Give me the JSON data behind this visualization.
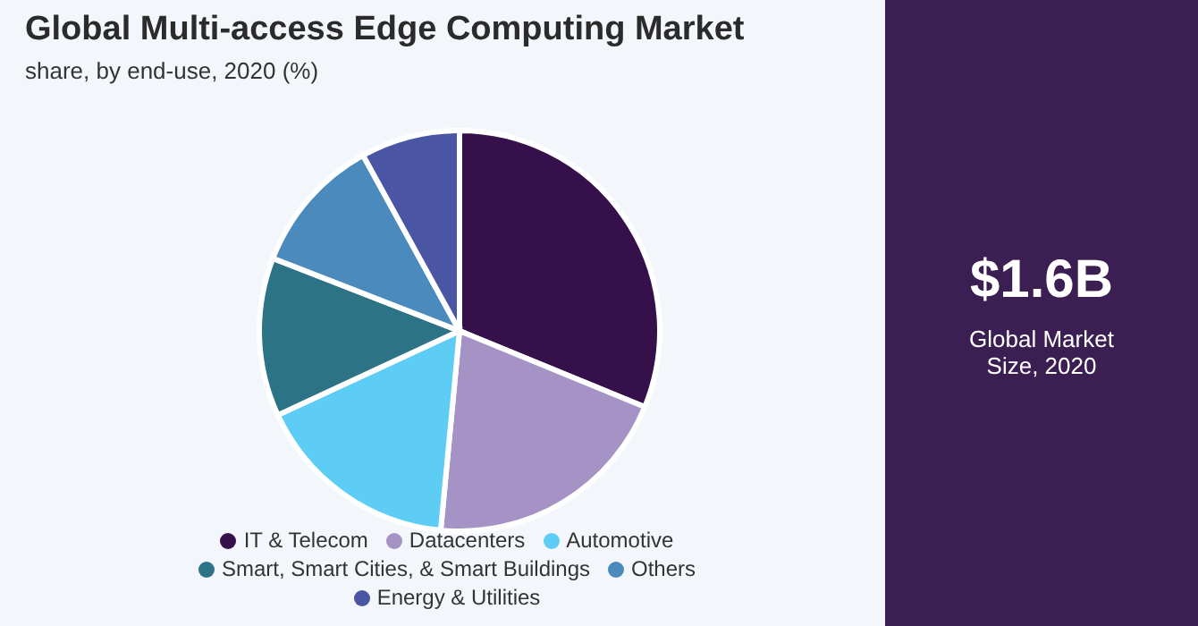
{
  "chart_data": {
    "type": "pie",
    "title": "Global Multi-access Edge Computing Market",
    "subtitle": "share, by end-use, 2020 (%)",
    "categories": [
      "IT & Telecom",
      "Datacenters",
      "Automotive",
      "Smart, Smart Cities, & Smart Buildings",
      "Others",
      "Energy & Utilities"
    ],
    "values": [
      31.2,
      20.3,
      16.6,
      12.8,
      11.1,
      8.0
    ],
    "colors": [
      "#35104a",
      "#a593c6",
      "#5ecdf5",
      "#2d7386",
      "#4b8abd",
      "#4a55a3"
    ],
    "legend": "bottom",
    "annotations": [
      "$1.6B",
      "Global Market Size, 2020"
    ]
  }
}
